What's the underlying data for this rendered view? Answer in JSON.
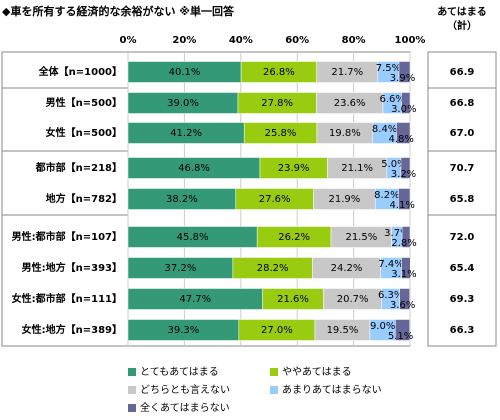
{
  "chart_data": {
    "type": "stacked-bar-horizontal",
    "title": "◆車を所有する経済的な余裕がない ※単一回答",
    "total_header": [
      "あてはまる",
      "（計）"
    ],
    "categories": [
      "全体【n=1000】",
      "男性【n=500】",
      "女性【n=500】",
      "都市部【n=218】",
      "地方【n=782】",
      "男性:都市部【n=107】",
      "男性:地方【n=393】",
      "女性:都市部【n=111】",
      "女性:地方【n=389】"
    ],
    "xlim": [
      0,
      100
    ],
    "xticks": [
      {
        "value": 0,
        "label": "0%"
      },
      {
        "value": 20,
        "label": "20%"
      },
      {
        "value": 40,
        "label": "40%"
      },
      {
        "value": 60,
        "label": "60%"
      },
      {
        "value": 80,
        "label": "80%"
      },
      {
        "value": 100,
        "label": "100%"
      }
    ],
    "grid": true,
    "series": [
      {
        "name": "とてもあてはまる",
        "color": "#339977",
        "values": [
          40.1,
          39.0,
          41.2,
          46.8,
          38.2,
          45.8,
          37.2,
          47.7,
          39.3
        ],
        "value_labels": [
          "40.1%",
          "39.0%",
          "41.2%",
          "46.8%",
          "38.2%",
          "45.8%",
          "37.2%",
          "47.7%",
          "39.3%"
        ]
      },
      {
        "name": "ややあてはまる",
        "color": "#99cc11",
        "values": [
          26.8,
          27.8,
          25.8,
          23.9,
          27.6,
          26.2,
          28.2,
          21.6,
          27.0
        ],
        "value_labels": [
          "26.8%",
          "27.8%",
          "25.8%",
          "23.9%",
          "27.6%",
          "26.2%",
          "28.2%",
          "21.6%",
          "27.0%"
        ]
      },
      {
        "name": "どちらとも言えない",
        "color": "#c8c8c8",
        "values": [
          21.7,
          23.6,
          19.8,
          21.1,
          21.9,
          21.5,
          24.2,
          20.7,
          19.5
        ],
        "value_labels": [
          "21.7%",
          "23.6%",
          "19.8%",
          "21.1%",
          "21.9%",
          "21.5%",
          "24.2%",
          "20.7%",
          "19.5%"
        ]
      },
      {
        "name": "あまりあてはまらない",
        "color": "#99ccff",
        "values": [
          7.5,
          6.6,
          8.4,
          5.0,
          8.2,
          3.7,
          7.4,
          6.3,
          9.0
        ],
        "value_labels": [
          "7.5%",
          "6.6%",
          "8.4%",
          "5.0%",
          "8.2%",
          "3.7%",
          "7.4%",
          "6.3%",
          "9.0%"
        ]
      },
      {
        "name": "全くあてはまらない",
        "color": "#666699",
        "values": [
          3.9,
          3.0,
          4.8,
          3.2,
          4.1,
          2.8,
          3.1,
          3.6,
          5.1
        ],
        "value_labels": [
          "3.9%",
          "3.0%",
          "4.8%",
          "3.2%",
          "4.1%",
          "2.8%",
          "3.1%",
          "3.6%",
          "5.1%"
        ]
      }
    ],
    "totals": {
      "values": [
        66.9,
        66.8,
        67.0,
        70.7,
        65.8,
        72.0,
        65.4,
        69.3,
        66.3
      ],
      "value_labels": [
        "66.9",
        "66.8",
        "67.0",
        "70.7",
        "65.8",
        "72.0",
        "65.4",
        "69.3",
        "66.3"
      ]
    }
  }
}
